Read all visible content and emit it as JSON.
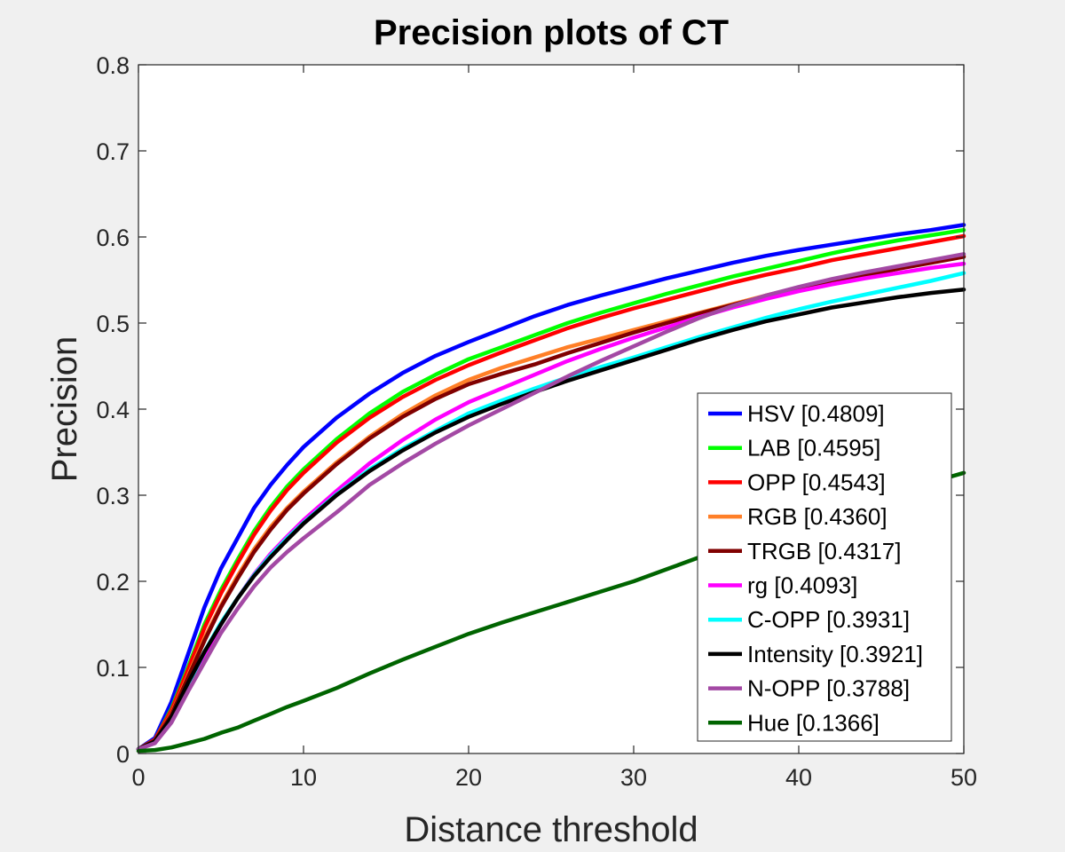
{
  "chart_data": {
    "type": "line",
    "title": "Precision plots of CT",
    "xlabel": "Distance threshold",
    "ylabel": "Precision",
    "xlim": [
      0,
      50
    ],
    "ylim": [
      0,
      0.8
    ],
    "xticks": [
      0,
      10,
      20,
      30,
      40,
      50
    ],
    "yticks": [
      0,
      0.1,
      0.2,
      0.3,
      0.4,
      0.5,
      0.6,
      0.7,
      0.8
    ],
    "ytick_labels": [
      "0",
      "0.1",
      "0.2",
      "0.3",
      "0.4",
      "0.5",
      "0.6",
      "0.7",
      "0.8"
    ],
    "grid": false,
    "legend_position": "lower-right",
    "x": [
      0,
      1,
      2,
      3,
      4,
      5,
      6,
      7,
      8,
      9,
      10,
      12,
      14,
      16,
      18,
      20,
      22,
      24,
      26,
      28,
      30,
      32,
      34,
      36,
      38,
      40,
      42,
      44,
      46,
      48,
      50
    ],
    "series": [
      {
        "name": "HSV [0.4809]",
        "color": "#0000ff",
        "values": [
          0.005,
          0.018,
          0.06,
          0.115,
          0.17,
          0.215,
          0.25,
          0.285,
          0.312,
          0.335,
          0.356,
          0.39,
          0.418,
          0.442,
          0.462,
          0.478,
          0.493,
          0.508,
          0.521,
          0.532,
          0.542,
          0.552,
          0.561,
          0.57,
          0.578,
          0.585,
          0.591,
          0.597,
          0.603,
          0.608,
          0.614
        ]
      },
      {
        "name": "LAB [0.4595]",
        "color": "#00ff00",
        "values": [
          0.005,
          0.016,
          0.052,
          0.1,
          0.15,
          0.19,
          0.225,
          0.258,
          0.286,
          0.31,
          0.33,
          0.365,
          0.395,
          0.42,
          0.44,
          0.458,
          0.472,
          0.486,
          0.5,
          0.512,
          0.523,
          0.534,
          0.544,
          0.554,
          0.563,
          0.572,
          0.581,
          0.589,
          0.596,
          0.602,
          0.608
        ]
      },
      {
        "name": "OPP [0.4543]",
        "color": "#ff0000",
        "values": [
          0.005,
          0.016,
          0.05,
          0.097,
          0.146,
          0.186,
          0.221,
          0.254,
          0.282,
          0.306,
          0.326,
          0.361,
          0.39,
          0.414,
          0.434,
          0.451,
          0.466,
          0.48,
          0.494,
          0.506,
          0.517,
          0.527,
          0.537,
          0.547,
          0.556,
          0.564,
          0.573,
          0.58,
          0.587,
          0.594,
          0.601
        ]
      },
      {
        "name": "RGB [0.4360]",
        "color": "#ff7f27",
        "values": [
          0.005,
          0.015,
          0.046,
          0.09,
          0.134,
          0.172,
          0.206,
          0.237,
          0.263,
          0.285,
          0.304,
          0.338,
          0.368,
          0.394,
          0.416,
          0.434,
          0.448,
          0.46,
          0.472,
          0.482,
          0.492,
          0.502,
          0.512,
          0.522,
          0.532,
          0.541,
          0.549,
          0.556,
          0.564,
          0.571,
          0.578
        ]
      },
      {
        "name": "TRGB [0.4317]",
        "color": "#800000",
        "values": [
          0.005,
          0.015,
          0.045,
          0.088,
          0.131,
          0.17,
          0.203,
          0.234,
          0.26,
          0.283,
          0.302,
          0.336,
          0.366,
          0.391,
          0.412,
          0.429,
          0.441,
          0.452,
          0.465,
          0.477,
          0.489,
          0.5,
          0.511,
          0.521,
          0.531,
          0.54,
          0.548,
          0.555,
          0.563,
          0.57,
          0.577
        ]
      },
      {
        "name": "rg [0.4093]",
        "color": "#ff00ff",
        "values": [
          0.005,
          0.013,
          0.038,
          0.076,
          0.114,
          0.15,
          0.18,
          0.208,
          0.232,
          0.252,
          0.271,
          0.305,
          0.337,
          0.364,
          0.388,
          0.408,
          0.424,
          0.44,
          0.456,
          0.47,
          0.483,
          0.495,
          0.507,
          0.518,
          0.528,
          0.537,
          0.545,
          0.552,
          0.558,
          0.564,
          0.569
        ]
      },
      {
        "name": "C-OPP [0.3931]",
        "color": "#00ffff",
        "values": [
          0.005,
          0.013,
          0.04,
          0.08,
          0.118,
          0.152,
          0.18,
          0.207,
          0.23,
          0.25,
          0.268,
          0.301,
          0.33,
          0.354,
          0.375,
          0.395,
          0.41,
          0.424,
          0.437,
          0.449,
          0.46,
          0.472,
          0.484,
          0.495,
          0.506,
          0.516,
          0.525,
          0.533,
          0.541,
          0.549,
          0.558
        ]
      },
      {
        "name": "Intensity [0.3921]",
        "color": "#000000",
        "values": [
          0.005,
          0.014,
          0.042,
          0.082,
          0.118,
          0.15,
          0.18,
          0.206,
          0.228,
          0.248,
          0.267,
          0.3,
          0.328,
          0.352,
          0.373,
          0.391,
          0.406,
          0.42,
          0.433,
          0.445,
          0.457,
          0.469,
          0.481,
          0.492,
          0.502,
          0.51,
          0.518,
          0.524,
          0.53,
          0.535,
          0.539
        ]
      },
      {
        "name": "N-OPP [0.3788]",
        "color": "#a349a4",
        "values": [
          0.005,
          0.012,
          0.036,
          0.072,
          0.106,
          0.14,
          0.168,
          0.194,
          0.216,
          0.234,
          0.25,
          0.28,
          0.312,
          0.337,
          0.36,
          0.381,
          0.4,
          0.419,
          0.438,
          0.456,
          0.473,
          0.49,
          0.506,
          0.52,
          0.532,
          0.542,
          0.551,
          0.559,
          0.566,
          0.573,
          0.58
        ]
      },
      {
        "name": "Hue [0.1366]",
        "color": "#006400",
        "values": [
          0.003,
          0.004,
          0.007,
          0.012,
          0.017,
          0.024,
          0.03,
          0.038,
          0.046,
          0.054,
          0.061,
          0.076,
          0.093,
          0.109,
          0.124,
          0.139,
          0.152,
          0.164,
          0.176,
          0.188,
          0.2,
          0.214,
          0.228,
          0.242,
          0.256,
          0.268,
          0.28,
          0.292,
          0.304,
          0.315,
          0.326
        ]
      }
    ]
  }
}
